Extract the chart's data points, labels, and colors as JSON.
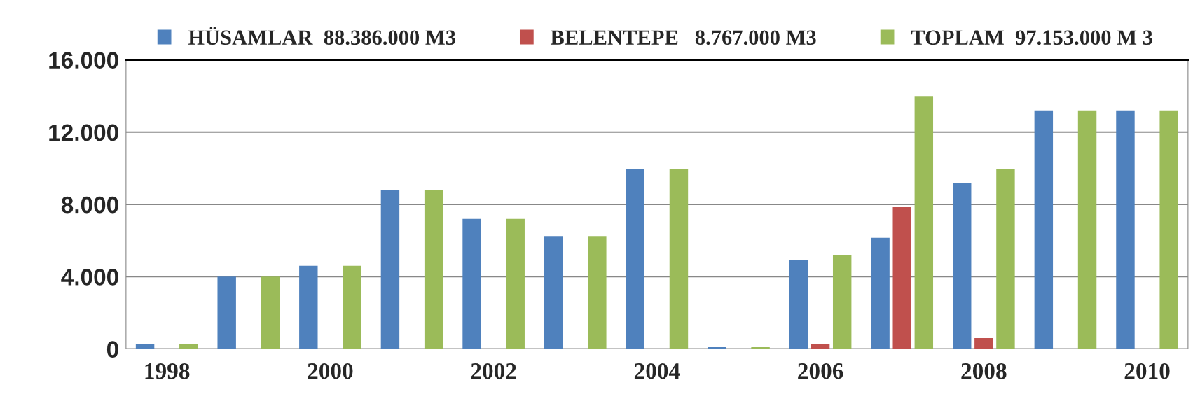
{
  "chart_data": {
    "type": "bar",
    "categories": [
      "1998",
      null,
      "2000",
      null,
      "2002",
      null,
      "2004",
      null,
      "2006",
      null,
      "2008",
      null,
      "2010"
    ],
    "series": [
      {
        "name": "HÜSAMLAR  88.386.000 M3",
        "color": "#4f81bd",
        "values": [
          250,
          4000,
          4600,
          8800,
          7200,
          6250,
          9950,
          100,
          4900,
          6150,
          9200,
          13200,
          13200
        ]
      },
      {
        "name": "BELENTEPE   8.767.000 M3",
        "color": "#c0504d",
        "values": [
          null,
          null,
          null,
          null,
          null,
          null,
          null,
          null,
          250,
          7850,
          600,
          null,
          null
        ]
      },
      {
        "name": "TOPLAM  97.153.000 M 3",
        "color": "#9bbb59",
        "values": [
          250,
          4000,
          4600,
          8800,
          7200,
          6250,
          9950,
          100,
          5200,
          14000,
          9950,
          13200,
          13200
        ]
      }
    ],
    "ylim": [
      0,
      16000
    ],
    "yticks": [
      {
        "value": 0,
        "label": "0"
      },
      {
        "value": 4000,
        "label": "4.000"
      },
      {
        "value": 8000,
        "label": "8.000"
      },
      {
        "value": 12000,
        "label": "12.000"
      },
      {
        "value": 16000,
        "label": "16.000"
      }
    ],
    "grid": "y",
    "legend": "top"
  }
}
